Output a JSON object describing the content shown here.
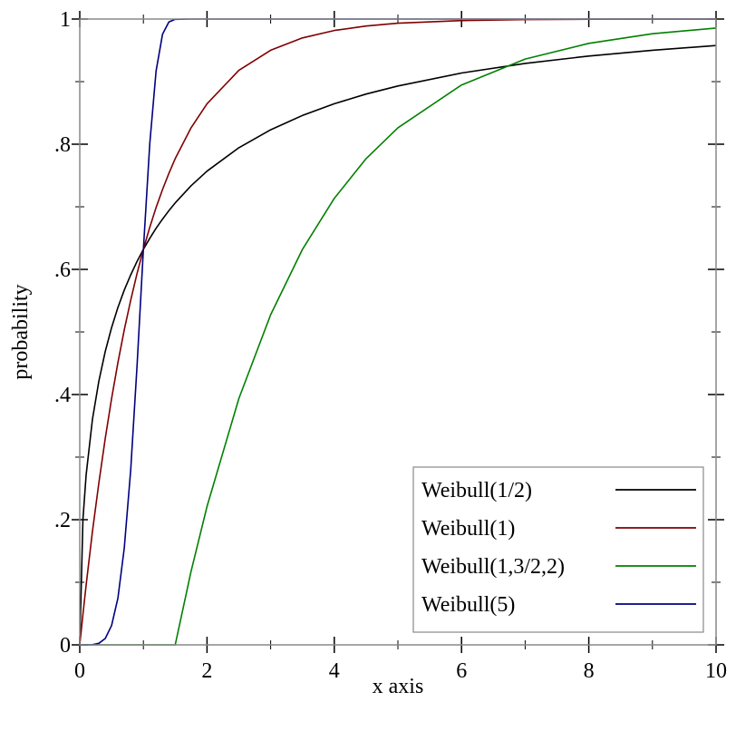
{
  "chart_data": {
    "type": "line",
    "title": "",
    "xlabel": "x axis",
    "ylabel": "probability",
    "xlim": [
      0,
      10
    ],
    "ylim": [
      0,
      1
    ],
    "x_ticks": [
      0,
      2,
      4,
      6,
      8,
      10
    ],
    "x_tick_labels": [
      "0",
      "2",
      "4",
      "6",
      "8",
      "10"
    ],
    "y_ticks": [
      0,
      0.2,
      0.4,
      0.6,
      0.8,
      1
    ],
    "y_tick_labels": [
      "0",
      ".2",
      ".4",
      ".6",
      ".8",
      "1"
    ],
    "grid": false,
    "legend_placement": "bottom-right",
    "x": [
      0,
      0.05,
      0.1,
      0.2,
      0.3,
      0.4,
      0.5,
      0.6,
      0.7,
      0.8,
      0.9,
      1,
      1.1,
      1.2,
      1.3,
      1.4,
      1.5,
      1.75,
      2,
      2.5,
      3,
      3.5,
      4,
      4.5,
      5,
      6,
      7,
      8,
      9,
      10
    ],
    "series": [
      {
        "name": "Weibull(1/2)",
        "color": "#000000",
        "values": [
          0,
          0.2004,
          0.2711,
          0.3606,
          0.4217,
          0.4687,
          0.5069,
          0.5391,
          0.5669,
          0.5912,
          0.6128,
          0.6321,
          0.6496,
          0.6656,
          0.6803,
          0.6937,
          0.7062,
          0.7336,
          0.7569,
          0.7943,
          0.8231,
          0.846,
          0.8647,
          0.8801,
          0.8931,
          0.9137,
          0.9291,
          0.9409,
          0.9502,
          0.9577
        ]
      },
      {
        "name": "Weibull(1)",
        "color": "#800000",
        "values": [
          0,
          0.0488,
          0.0952,
          0.1813,
          0.2592,
          0.3297,
          0.3935,
          0.4512,
          0.5034,
          0.5507,
          0.5934,
          0.6321,
          0.6671,
          0.6988,
          0.7275,
          0.7534,
          0.7769,
          0.8262,
          0.8647,
          0.9179,
          0.9502,
          0.9698,
          0.9817,
          0.9889,
          0.9933,
          0.9975,
          0.9991,
          0.9997,
          0.9999,
          1.0
        ]
      },
      {
        "name": "Weibull(1,3/2,2)",
        "color": "#008000",
        "values": [
          0,
          0,
          0,
          0,
          0,
          0,
          0,
          0,
          0,
          0,
          0,
          0,
          0,
          0,
          0,
          0,
          0,
          0.1175,
          0.2212,
          0.3935,
          0.5276,
          0.6321,
          0.7135,
          0.7769,
          0.8262,
          0.8946,
          0.9361,
          0.9612,
          0.9765,
          0.9857
        ]
      },
      {
        "name": "Weibull(5)",
        "color": "#000080",
        "values": [
          0,
          0,
          1e-05,
          0.00032,
          0.0024,
          0.0101,
          0.0308,
          0.0748,
          0.1547,
          0.2794,
          0.4459,
          0.6321,
          0.8002,
          0.9169,
          0.9756,
          0.9954,
          0.9995,
          1,
          1,
          1,
          1,
          1,
          1,
          1,
          1,
          1,
          1,
          1,
          1,
          1
        ]
      }
    ]
  }
}
